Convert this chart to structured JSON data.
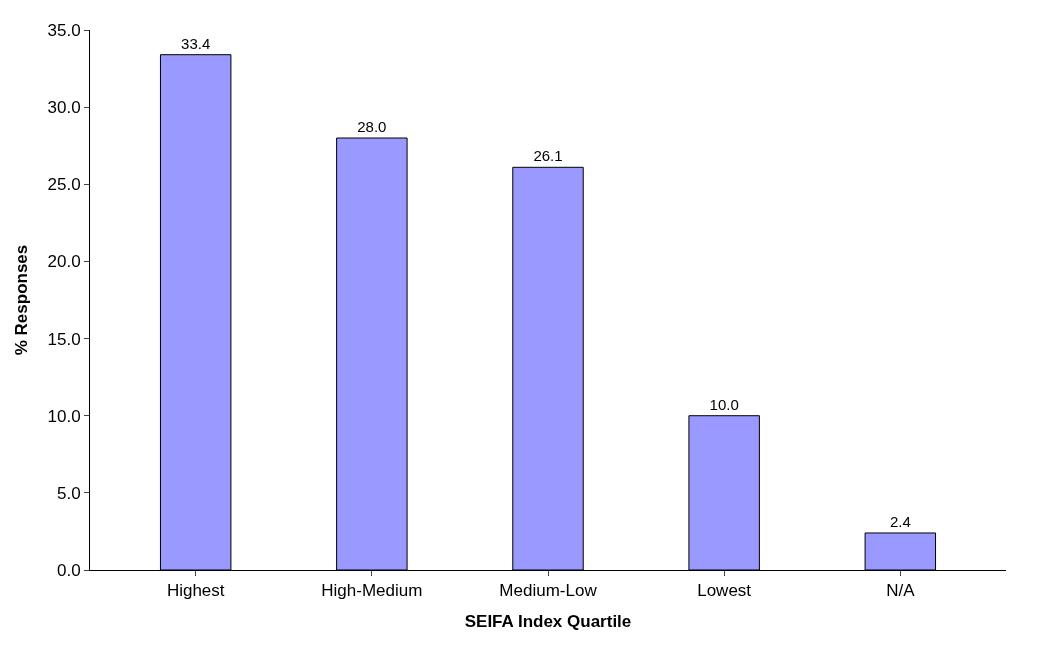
{
  "chart_data": {
    "type": "bar",
    "xlabel": "SEIFA Index Quartile",
    "ylabel": "% Responses",
    "categories": [
      "Highest",
      "High-Medium",
      "Medium-Low",
      "Lowest",
      "N/A"
    ],
    "values": [
      33.4,
      28.0,
      26.1,
      10.0,
      2.4
    ],
    "color": "#9999ff",
    "data_labels": true,
    "value_labels": [
      "33.4",
      "28.0",
      "26.1",
      "10.0",
      "2.4"
    ],
    "ylim": [
      0,
      35
    ],
    "yticks": [
      {
        "value": 0,
        "label": "0.0"
      },
      {
        "value": 5,
        "label": "5.0"
      },
      {
        "value": 10,
        "label": "10.0"
      },
      {
        "value": 15,
        "label": "15.0"
      },
      {
        "value": 20,
        "label": "20.0"
      },
      {
        "value": 25,
        "label": "25.0"
      },
      {
        "value": 30,
        "label": "30.0"
      },
      {
        "value": 35,
        "label": "35.0"
      }
    ]
  }
}
